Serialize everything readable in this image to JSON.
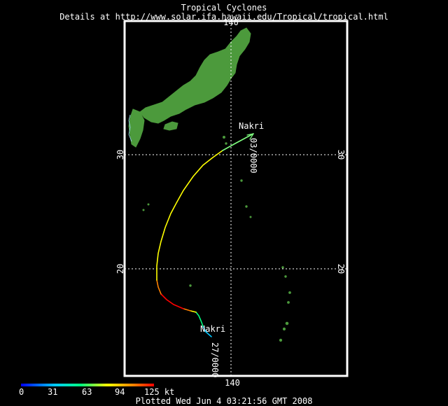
{
  "header": {
    "title": "Tropical Cyclones",
    "details": "Details at http://www.solar.ifa.hawaii.edu/Tropical/tropical.html"
  },
  "axes": {
    "lon_top": "140",
    "lon_bottom": "140",
    "lat_30_left": "30",
    "lat_30_right": "30",
    "lat_20_left": "20",
    "lat_20_right": "20"
  },
  "storm": {
    "name_start": "Nakri",
    "name_end": "Nakri",
    "date_start": "27/0000",
    "date_end": "03/0000"
  },
  "legend": {
    "labels": [
      "0",
      "31",
      "63",
      "94",
      "125 kt"
    ],
    "colors": [
      "#0000ff",
      "#00c8ff",
      "#00ff80",
      "#ffff00",
      "#ff8000",
      "#ff0000"
    ]
  },
  "footer": {
    "plotted": "Plotted Wed Jun 4 03:21:56 GMT 2008"
  },
  "colors": {
    "land": "#4c9a3c",
    "frame": "#ffffff",
    "grid": "#ffffff"
  }
}
